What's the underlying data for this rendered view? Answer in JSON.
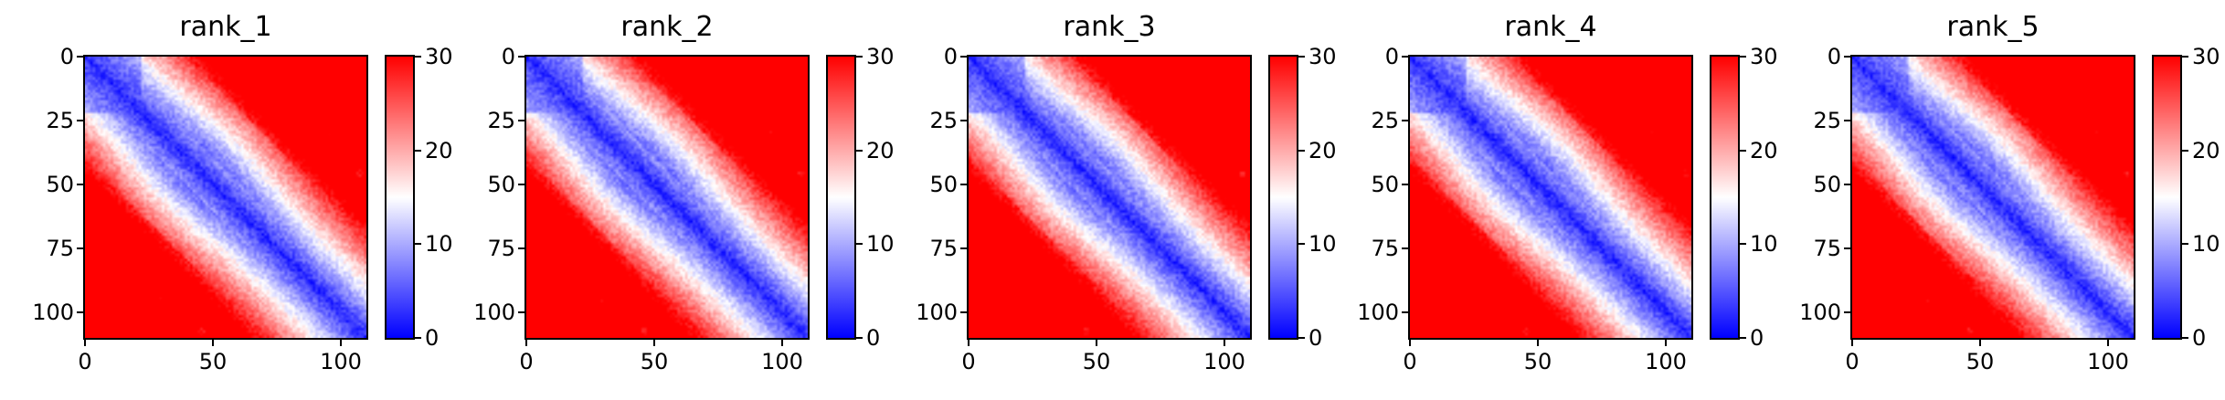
{
  "chart_data": [
    {
      "type": "heatmap",
      "title": "rank_1",
      "x_ticks": [
        0,
        50,
        100
      ],
      "y_ticks": [
        0,
        25,
        50,
        75,
        100
      ],
      "xlim": [
        0,
        110
      ],
      "ylim": [
        110,
        0
      ],
      "n": 110,
      "colorbar": {
        "ticks": [
          0,
          10,
          20,
          30
        ],
        "range": [
          0,
          30
        ],
        "colors": [
          "#0000ff",
          "#ffffff",
          "#ff0000"
        ]
      },
      "low_contacts": [
        {
          "x": 95,
          "y": 29
        },
        {
          "x": 29,
          "y": 95
        },
        {
          "x": 45,
          "y": 107
        },
        {
          "x": 107,
          "y": 45
        }
      ]
    },
    {
      "type": "heatmap",
      "title": "rank_2",
      "x_ticks": [
        0,
        50,
        100
      ],
      "y_ticks": [
        0,
        25,
        50,
        75,
        100
      ],
      "xlim": [
        0,
        110
      ],
      "ylim": [
        110,
        0
      ],
      "n": 110,
      "colorbar": {
        "ticks": [
          0,
          10,
          20,
          30
        ],
        "range": [
          0,
          30
        ],
        "colors": [
          "#0000ff",
          "#ffffff",
          "#ff0000"
        ]
      },
      "low_contacts": [
        {
          "x": 95,
          "y": 29
        },
        {
          "x": 29,
          "y": 95
        },
        {
          "x": 45,
          "y": 107
        },
        {
          "x": 107,
          "y": 45
        }
      ]
    },
    {
      "type": "heatmap",
      "title": "rank_3",
      "x_ticks": [
        0,
        50,
        100
      ],
      "y_ticks": [
        0,
        25,
        50,
        75,
        100
      ],
      "xlim": [
        0,
        110
      ],
      "ylim": [
        110,
        0
      ],
      "n": 110,
      "colorbar": {
        "ticks": [
          0,
          10,
          20,
          30
        ],
        "range": [
          0,
          30
        ],
        "colors": [
          "#0000ff",
          "#ffffff",
          "#ff0000"
        ]
      },
      "low_contacts": [
        {
          "x": 95,
          "y": 29
        },
        {
          "x": 29,
          "y": 95
        },
        {
          "x": 45,
          "y": 107
        },
        {
          "x": 107,
          "y": 45
        }
      ]
    },
    {
      "type": "heatmap",
      "title": "rank_4",
      "x_ticks": [
        0,
        50,
        100
      ],
      "y_ticks": [
        0,
        25,
        50,
        75,
        100
      ],
      "xlim": [
        0,
        110
      ],
      "ylim": [
        110,
        0
      ],
      "n": 110,
      "colorbar": {
        "ticks": [
          0,
          10,
          20,
          30
        ],
        "range": [
          0,
          30
        ],
        "colors": [
          "#0000ff",
          "#ffffff",
          "#ff0000"
        ]
      },
      "low_contacts": [
        {
          "x": 95,
          "y": 29
        },
        {
          "x": 29,
          "y": 95
        },
        {
          "x": 45,
          "y": 107
        },
        {
          "x": 107,
          "y": 45
        }
      ]
    },
    {
      "type": "heatmap",
      "title": "rank_5",
      "x_ticks": [
        0,
        50,
        100
      ],
      "y_ticks": [
        0,
        25,
        50,
        75,
        100
      ],
      "xlim": [
        0,
        110
      ],
      "ylim": [
        110,
        0
      ],
      "n": 110,
      "colorbar": {
        "ticks": [
          0,
          10,
          20,
          30
        ],
        "range": [
          0,
          30
        ],
        "colors": [
          "#0000ff",
          "#ffffff",
          "#ff0000"
        ]
      },
      "low_contacts": [
        {
          "x": 95,
          "y": 29
        },
        {
          "x": 29,
          "y": 95
        },
        {
          "x": 45,
          "y": 107
        },
        {
          "x": 107,
          "y": 45
        }
      ]
    }
  ]
}
